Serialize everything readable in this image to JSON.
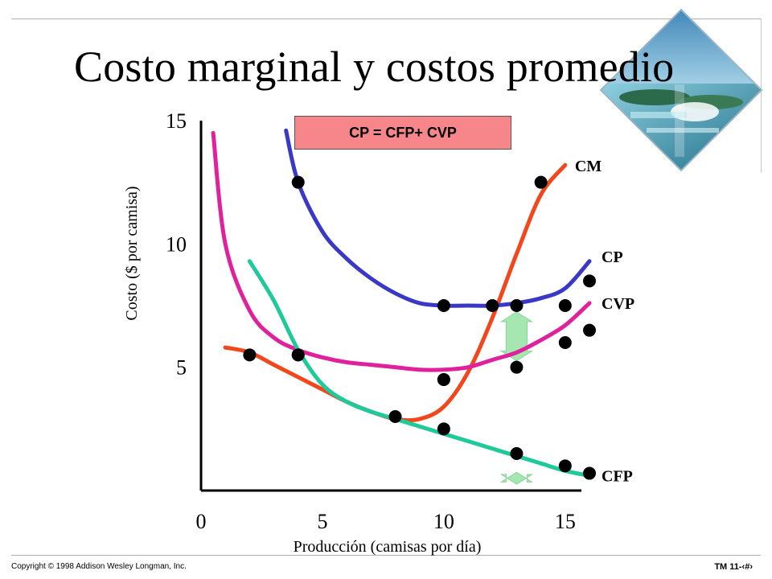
{
  "slide": {
    "title": "Costo marginal y costos promedio",
    "formula": "CP = CFP+ CVP",
    "copyright": "Copyright © 1998 Addison Wesley Longman, Inc.",
    "slide_tag": "TM 11-‹#›"
  },
  "chart_data": {
    "type": "line",
    "xlabel": "Producción (camisas por día)",
    "ylabel": "Costo ($ por camisa)",
    "xlim": [
      0,
      16
    ],
    "ylim": [
      0,
      15
    ],
    "x_ticks": [
      "0",
      "5",
      "10",
      "15"
    ],
    "y_ticks": [
      "5",
      "10",
      "15"
    ],
    "grid": false,
    "series": [
      {
        "name": "CM",
        "color": "#f2471d",
        "x": [
          1,
          2,
          3,
          4,
          5,
          6,
          7,
          8,
          9,
          10,
          11,
          12,
          13,
          14,
          15
        ],
        "y": [
          5.8,
          5.6,
          5.1,
          4.6,
          4.1,
          3.6,
          3.2,
          2.9,
          2.9,
          3.4,
          4.8,
          7.0,
          9.6,
          12.0,
          13.2
        ],
        "markers_x": [
          2,
          4,
          8,
          10,
          12,
          14
        ],
        "markers_y": [
          5.5,
          5.5,
          3.0,
          4.5,
          7.5,
          12.5
        ]
      },
      {
        "name": "CP",
        "color": "#3a39c6",
        "x": [
          3.5,
          4,
          5,
          6,
          7,
          8,
          9,
          10,
          11,
          12,
          13,
          14,
          15,
          16
        ],
        "y": [
          14.6,
          12.5,
          10.5,
          9.4,
          8.6,
          8.0,
          7.6,
          7.5,
          7.5,
          7.5,
          7.6,
          7.8,
          8.2,
          9.3
        ],
        "markers_x": [
          4,
          10,
          13,
          15,
          16
        ],
        "markers_y": [
          12.5,
          7.5,
          7.5,
          7.5,
          8.5
        ]
      },
      {
        "name": "CVP",
        "color": "#e0219c",
        "x": [
          0.5,
          1,
          2,
          3,
          4,
          5,
          6,
          7,
          8,
          9,
          10,
          11,
          12,
          13,
          14,
          15,
          16
        ],
        "y": [
          14.5,
          10.0,
          7.3,
          6.2,
          5.7,
          5.4,
          5.2,
          5.1,
          5.0,
          4.9,
          4.9,
          5.0,
          5.3,
          5.6,
          6.1,
          6.7,
          7.6
        ],
        "markers_x": [
          4,
          10,
          13,
          15,
          16
        ],
        "markers_y": [
          5.5,
          4.5,
          5.0,
          6.0,
          6.5
        ]
      },
      {
        "name": "CFP",
        "color": "#1ec99a",
        "x": [
          2,
          3,
          4,
          5,
          6,
          7,
          8,
          9,
          10,
          11,
          12,
          13,
          14,
          15,
          16
        ],
        "y": [
          9.3,
          7.7,
          5.7,
          4.3,
          3.6,
          3.2,
          2.9,
          2.6,
          2.3,
          2.0,
          1.7,
          1.4,
          1.1,
          0.8,
          0.6
        ],
        "markers_x": [
          10,
          13,
          15,
          16
        ],
        "markers_y": [
          2.5,
          1.5,
          1.0,
          0.7
        ]
      }
    ],
    "annotations": [
      {
        "type": "double-arrow",
        "x": 13,
        "y_from": 5.0,
        "y_to": 7.5,
        "color": "#a6e6b0"
      },
      {
        "type": "double-arrow",
        "x": 13,
        "y_from": 0.0,
        "y_to": 1.0,
        "color": "#a6e6b0"
      }
    ]
  }
}
